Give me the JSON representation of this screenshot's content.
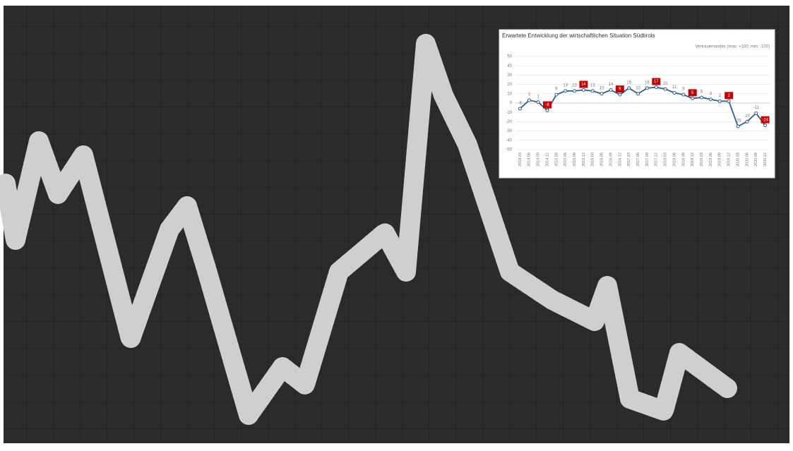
{
  "chart_data": {
    "type": "line",
    "title": "Erwartete Entwicklung der wirtschaftlichen Situation Südtirols",
    "subtitle": "Vertrauensindex (max: +100; min: -100)",
    "categories": [
      "2014.03",
      "2014.06",
      "2014.09",
      "2014.12",
      "2015.03",
      "2015.06",
      "2015.09",
      "2015.12",
      "2016.03",
      "2016.06",
      "2016.09",
      "2016.12",
      "2017.03",
      "2017.06",
      "2017.09",
      "2017.12",
      "2018.03",
      "2018.06",
      "2018.09",
      "2018.12",
      "2019.03",
      "2019.06",
      "2019.09",
      "2019.12",
      "2020.03",
      "2020.06",
      "2020.09",
      "2020.12"
    ],
    "values": [
      -6,
      3,
      1,
      -8,
      9,
      13,
      13,
      14,
      13,
      10,
      14,
      9,
      16,
      10,
      16,
      17,
      15,
      11,
      9,
      5,
      6,
      4,
      2,
      2,
      -25,
      -20,
      -11,
      -24
    ],
    "color": "#2e5e8e",
    "highlight_color": "#c00000",
    "ylim": [
      -50,
      50
    ],
    "yticks": [
      -50,
      -40,
      -30,
      -20,
      -10,
      0,
      10,
      20,
      30,
      40,
      50
    ],
    "grid": true
  }
}
